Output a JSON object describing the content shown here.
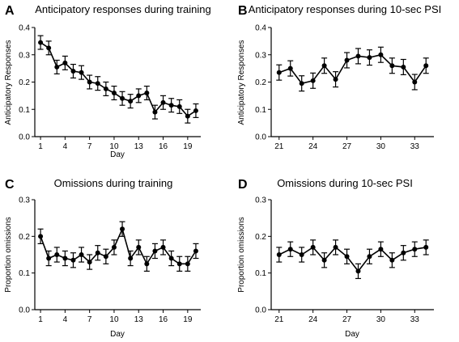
{
  "chart_data": [
    {
      "panel": "A",
      "type": "line",
      "title": "Anticipatory responses during training",
      "xlabel": "Day",
      "ylabel": "Anticipatory Responses",
      "xlim": [
        0.3,
        20.6
      ],
      "ylim": [
        0.0,
        0.4
      ],
      "xticks": [
        "1",
        "4",
        "7",
        "10",
        "13",
        "16",
        "19"
      ],
      "yticks": [
        "0.0",
        "0.1",
        "0.2",
        "0.3",
        "0.4"
      ],
      "x": [
        1,
        2,
        3,
        4,
        5,
        6,
        7,
        8,
        9,
        10,
        11,
        12,
        13,
        14,
        15,
        16,
        17,
        18,
        19,
        20
      ],
      "y": [
        0.345,
        0.325,
        0.255,
        0.27,
        0.24,
        0.235,
        0.2,
        0.195,
        0.175,
        0.16,
        0.14,
        0.13,
        0.15,
        0.16,
        0.09,
        0.125,
        0.115,
        0.11,
        0.075,
        0.095
      ],
      "error": [
        0.025,
        0.025,
        0.025,
        0.025,
        0.025,
        0.025,
        0.025,
        0.025,
        0.025,
        0.025,
        0.025,
        0.025,
        0.025,
        0.025,
        0.025,
        0.025,
        0.025,
        0.025,
        0.025,
        0.025
      ]
    },
    {
      "panel": "B",
      "type": "line",
      "title": "Anticipatory responses during 10-sec PSI",
      "xlabel": "",
      "ylabel": "Anticipatory Responses",
      "xlim": [
        20.3,
        34.7
      ],
      "ylim": [
        0.0,
        0.4
      ],
      "xticks": [
        "21",
        "24",
        "27",
        "30",
        "33"
      ],
      "yticks": [
        "0.0",
        "0.1",
        "0.2",
        "0.3",
        "0.4"
      ],
      "x": [
        21,
        22,
        23,
        24,
        25,
        26,
        27,
        28,
        29,
        30,
        31,
        32,
        33,
        34
      ],
      "y": [
        0.235,
        0.25,
        0.195,
        0.205,
        0.26,
        0.21,
        0.28,
        0.295,
        0.29,
        0.3,
        0.26,
        0.255,
        0.2,
        0.26
      ],
      "error": [
        0.028,
        0.028,
        0.028,
        0.028,
        0.028,
        0.028,
        0.028,
        0.028,
        0.028,
        0.028,
        0.028,
        0.028,
        0.028,
        0.028
      ]
    },
    {
      "panel": "C",
      "type": "line",
      "title": "Omissions during training",
      "xlabel": "Day",
      "ylabel": "Proportion omissions",
      "xlim": [
        0.3,
        20.6
      ],
      "ylim": [
        0.0,
        0.3
      ],
      "xticks": [
        "1",
        "4",
        "7",
        "10",
        "13",
        "16",
        "19"
      ],
      "yticks": [
        "0.0",
        "0.1",
        "0.2",
        "0.3"
      ],
      "x": [
        1,
        2,
        3,
        4,
        5,
        6,
        7,
        8,
        9,
        10,
        11,
        12,
        13,
        14,
        15,
        16,
        17,
        18,
        19,
        20
      ],
      "y": [
        0.2,
        0.14,
        0.15,
        0.14,
        0.135,
        0.15,
        0.13,
        0.155,
        0.145,
        0.17,
        0.22,
        0.14,
        0.17,
        0.125,
        0.16,
        0.17,
        0.14,
        0.125,
        0.125,
        0.16
      ],
      "error": [
        0.02,
        0.02,
        0.02,
        0.02,
        0.02,
        0.02,
        0.02,
        0.02,
        0.02,
        0.02,
        0.02,
        0.02,
        0.02,
        0.02,
        0.02,
        0.02,
        0.02,
        0.02,
        0.02,
        0.02
      ]
    },
    {
      "panel": "D",
      "type": "line",
      "title": "Omissions during 10-sec PSI",
      "xlabel": "Day",
      "ylabel": "Proportion omissions",
      "xlim": [
        20.3,
        34.7
      ],
      "ylim": [
        0.0,
        0.3
      ],
      "xticks": [
        "21",
        "24",
        "27",
        "30",
        "33"
      ],
      "yticks": [
        "0.0",
        "0.1",
        "0.2",
        "0.3"
      ],
      "x": [
        21,
        22,
        23,
        24,
        25,
        26,
        27,
        28,
        29,
        30,
        31,
        32,
        33,
        34
      ],
      "y": [
        0.15,
        0.165,
        0.15,
        0.17,
        0.135,
        0.17,
        0.145,
        0.105,
        0.145,
        0.165,
        0.135,
        0.155,
        0.165,
        0.17
      ],
      "error": [
        0.02,
        0.02,
        0.02,
        0.02,
        0.02,
        0.02,
        0.02,
        0.02,
        0.02,
        0.02,
        0.02,
        0.02,
        0.02,
        0.02
      ]
    }
  ],
  "line_color": "#000000"
}
